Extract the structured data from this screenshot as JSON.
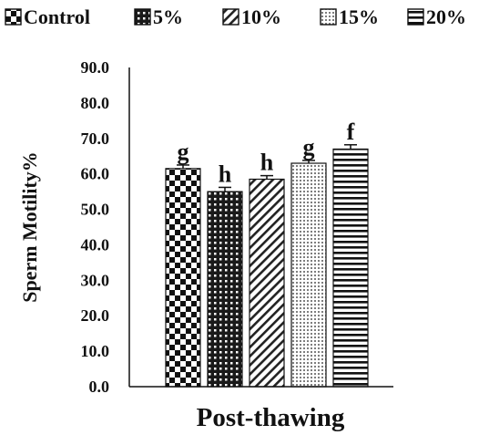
{
  "chart_data": {
    "type": "bar",
    "categories": [
      "Post-thawing"
    ],
    "xlabel": "Post-thawing",
    "ylabel": "Sperm Motility%",
    "ylim": [
      0,
      90
    ],
    "yticks": [
      "0.0",
      "10.0",
      "20.0",
      "30.0",
      "40.0",
      "50.0",
      "60.0",
      "70.0",
      "80.0",
      "90.0"
    ],
    "grid": false,
    "legend_position": "top",
    "series": [
      {
        "name": "Control",
        "values": [
          61.5
        ],
        "error": [
          1.0
        ],
        "label": "g",
        "pattern": "checker"
      },
      {
        "name": "5%",
        "values": [
          55.0
        ],
        "error": [
          1.2
        ],
        "label": "h",
        "pattern": "dotgrid"
      },
      {
        "name": "10%",
        "values": [
          58.5
        ],
        "error": [
          1.0
        ],
        "label": "h",
        "pattern": "diagonal"
      },
      {
        "name": "15%",
        "values": [
          63.0
        ],
        "error": [
          0.8
        ],
        "label": "g",
        "pattern": "dotted"
      },
      {
        "name": "20%",
        "values": [
          67.0
        ],
        "error": [
          1.2
        ],
        "label": "f",
        "pattern": "horizontal"
      }
    ]
  }
}
